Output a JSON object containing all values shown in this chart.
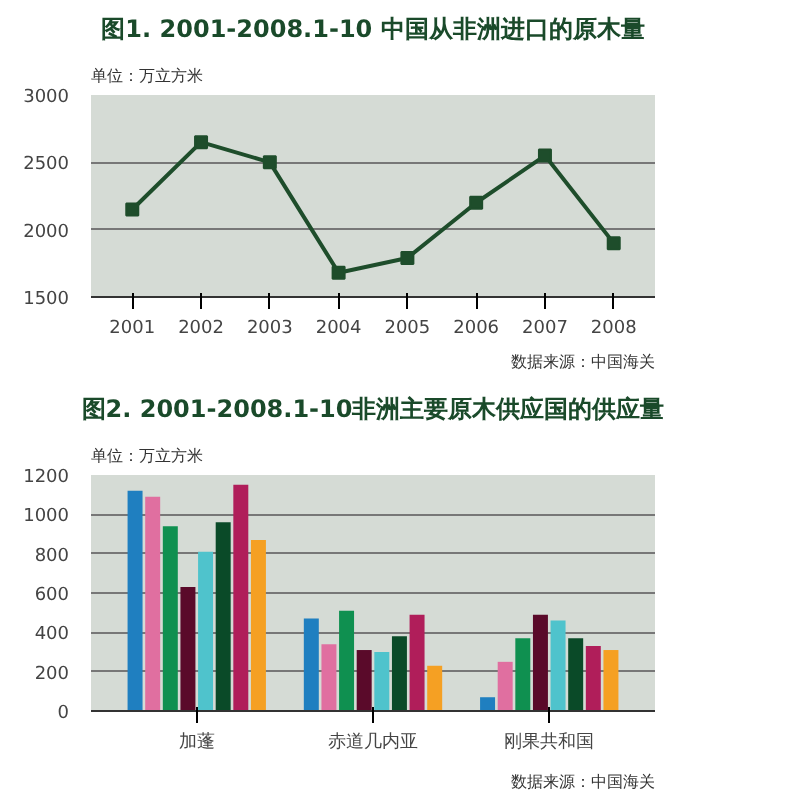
{
  "chart_data": [
    {
      "type": "line",
      "title": "图1. 2001-2008.1-10 中国从非洲进口的原木量",
      "annotations": [
        "单位：万立方米",
        "数据来源：中国海关"
      ],
      "categories": [
        "2001",
        "2002",
        "2003",
        "2004",
        "2005",
        "2006",
        "2007",
        "2008"
      ],
      "series": [
        {
          "color": "#1e4d2b",
          "values": [
            2150,
            2650,
            2500,
            1680,
            1790,
            2200,
            2550,
            1900
          ]
        }
      ],
      "ylim": [
        1500,
        3000
      ],
      "yticks": [
        1500,
        2000,
        2500,
        3000
      ],
      "grid": "y",
      "marker": "square",
      "line_style": "solid"
    },
    {
      "type": "bar",
      "title": "图2. 2001-2008.1-10非洲主要原木供应国的供应量",
      "annotations": [
        "单位：万立方米",
        "数据来源：中国海关"
      ],
      "categories": [
        "加蓬",
        "赤道几内亚",
        "刚果共和国"
      ],
      "series": [
        {
          "color": "#1f7fc0",
          "values": [
            1120,
            470,
            70
          ]
        },
        {
          "color": "#e06fa0",
          "values": [
            1090,
            340,
            250
          ]
        },
        {
          "color": "#0f9050",
          "values": [
            940,
            510,
            370
          ]
        },
        {
          "color": "#5a0a2a",
          "values": [
            630,
            310,
            490
          ]
        },
        {
          "color": "#4fc3cc",
          "values": [
            810,
            300,
            460
          ]
        },
        {
          "color": "#0a4a28",
          "values": [
            960,
            380,
            370
          ]
        },
        {
          "color": "#b01e5a",
          "values": [
            1150,
            490,
            330
          ]
        },
        {
          "color": "#f5a023",
          "values": [
            870,
            230,
            310
          ]
        }
      ],
      "ylim": [
        0,
        1200
      ],
      "yticks": [
        0,
        200,
        400,
        600,
        800,
        1000,
        1200
      ],
      "grid": "y"
    }
  ]
}
